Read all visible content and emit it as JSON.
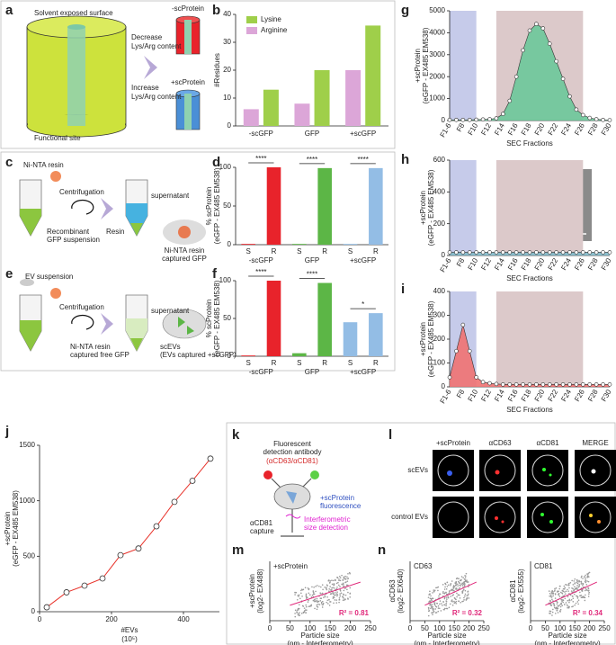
{
  "panel_labels": [
    "a",
    "b",
    "c",
    "d",
    "e",
    "f",
    "g",
    "h",
    "i",
    "j",
    "k",
    "l",
    "m",
    "n"
  ],
  "panel_a": {
    "surface": "Solvent exposed surface",
    "site": "Functional site",
    "decrease": [
      "Decrease",
      "Lys/Arg content"
    ],
    "increase": [
      "Increase",
      "Lys/Arg content"
    ],
    "minus": "-scProtein",
    "plus": "+scProtein"
  },
  "panel_c": {
    "resin": "Ni-NTA resin",
    "suspension": [
      "Recombinant",
      "GFP suspension"
    ],
    "spin": "Centrifugation",
    "supernatant": "supernatant",
    "pellet": "Resin",
    "captured": [
      "Ni-NTA resin",
      "captured GFP"
    ]
  },
  "panel_e": {
    "suspension": "EV suspension",
    "spin": "Centrifugation",
    "supernatant": "supernatant",
    "captured": [
      "Ni-NTA resin",
      "captured free GFP"
    ],
    "scevs": [
      "scEVs",
      "(EVs captured +scGFP)"
    ]
  },
  "panel_k": {
    "antibody": [
      "Fluorescent",
      "detection antibody",
      "(αCD63/αCD81)"
    ],
    "fluor": [
      "+scProtein",
      "fluorescence"
    ],
    "size": [
      "Interferometric",
      "size detection"
    ],
    "capture": [
      "αCD81",
      "capture"
    ]
  },
  "panel_l": {
    "columns": [
      "+scProtein",
      "αCD63",
      "αCD81",
      "MERGE"
    ],
    "rows": [
      "scEVs",
      "control EVs"
    ]
  },
  "chart_data": [
    {
      "type": "bar",
      "ylabel": [
        "#Residues"
      ],
      "categories": [
        "-scGFP",
        "GFP",
        "+scGFP"
      ],
      "series": [
        {
          "name": "Lysine",
          "color": "#9fcf4a",
          "values": [
            13,
            20,
            36
          ]
        },
        {
          "name": "Arginine",
          "color": "#dca6d8",
          "values": [
            6,
            8,
            20
          ]
        }
      ],
      "ylim": [
        0,
        40
      ],
      "yticks": [
        0,
        10,
        20,
        30,
        40
      ],
      "legend": "upper left"
    },
    {
      "type": "bar",
      "ylabel": [
        "% scProtein",
        "(eGFP - EX485 EM538)"
      ],
      "categories": [
        "S",
        "R",
        "S",
        "R",
        "S",
        "R"
      ],
      "groups": [
        "-scGFP",
        "GFP",
        "+scGFP"
      ],
      "values": [
        1,
        100,
        1,
        99,
        1,
        99
      ],
      "colors": [
        "#e8232b",
        "#e8232b",
        "#5cb646",
        "#5cb646",
        "#93bde5",
        "#93bde5"
      ],
      "ylim": [
        0,
        100
      ],
      "yticks": [
        0,
        50,
        100
      ],
      "annotations": [
        "****",
        "****",
        "****"
      ]
    },
    {
      "type": "bar",
      "ylabel": [
        "% scProtein",
        "(eGFP - EX485 EM538)"
      ],
      "categories": [
        "S",
        "R",
        "S",
        "R",
        "S",
        "R"
      ],
      "groups": [
        "-scGFP",
        "GFP",
        "+scGFP"
      ],
      "values": [
        1,
        100,
        4,
        97,
        45,
        57
      ],
      "colors": [
        "#e8232b",
        "#e8232b",
        "#5cb646",
        "#5cb646",
        "#93bde5",
        "#93bde5"
      ],
      "ylim": [
        0,
        100
      ],
      "yticks": [
        0,
        50,
        100
      ],
      "annotations": [
        "****",
        "****",
        "*"
      ]
    },
    {
      "type": "area",
      "ylabel": [
        "+scProtein",
        "(eGFP - EX485 EM538)"
      ],
      "xlabel": "SEC Fractions",
      "categories": [
        "F1-6",
        null,
        "F8",
        null,
        "F10",
        null,
        "F12",
        null,
        "F14",
        null,
        "F16",
        null,
        "F18",
        null,
        "F20",
        null,
        "F22",
        null,
        "F24",
        null,
        "F26",
        null,
        "F28",
        null,
        "F30"
      ],
      "values": [
        30,
        30,
        30,
        30,
        40,
        50,
        60,
        100,
        300,
        900,
        2000,
        3200,
        4100,
        4400,
        4200,
        3500,
        2700,
        1900,
        1100,
        500,
        250,
        120,
        60,
        30,
        20
      ],
      "color": "#6cc89a",
      "ylim": [
        0,
        5000
      ],
      "yticks": [
        0,
        1000,
        2000,
        3000,
        4000,
        5000
      ],
      "shaded": [
        {
          "from": 0,
          "to": 4,
          "color": "#c6cbea"
        },
        {
          "from": 7,
          "to": 20,
          "color": "#dcc9ca"
        }
      ]
    },
    {
      "type": "area",
      "ylabel": [
        "+scProtein",
        "(eGFP - EX485 EM538)"
      ],
      "xlabel": "SEC Fractions",
      "categories": [
        "F1-6",
        null,
        "F8",
        null,
        "F10",
        null,
        "F12",
        null,
        "F14",
        null,
        "F16",
        null,
        "F18",
        null,
        "F20",
        null,
        "F22",
        null,
        "F24",
        null,
        "F26",
        null,
        "F28",
        null,
        "F30"
      ],
      "values": [
        20,
        20,
        20,
        20,
        20,
        20,
        20,
        20,
        20,
        20,
        20,
        20,
        20,
        20,
        20,
        20,
        20,
        20,
        20,
        20,
        20,
        20,
        20,
        20,
        20
      ],
      "color": "#7fb8c8",
      "ylim": [
        0,
        600
      ],
      "yticks": [
        0,
        200,
        400,
        600
      ],
      "shaded": [
        {
          "from": 0,
          "to": 4,
          "color": "#c6cbea"
        },
        {
          "from": 7,
          "to": 20,
          "color": "#dcc9ca"
        }
      ]
    },
    {
      "type": "area",
      "ylabel": [
        "+scProtein",
        "(eGFP - EX485 EM538)"
      ],
      "xlabel": "SEC Fractions",
      "categories": [
        "F1-6",
        null,
        "F8",
        null,
        "F10",
        null,
        "F12",
        null,
        "F14",
        null,
        "F16",
        null,
        "F18",
        null,
        "F20",
        null,
        "F22",
        null,
        "F24",
        null,
        "F26",
        null,
        "F28",
        null,
        "F30"
      ],
      "values": [
        40,
        150,
        260,
        150,
        40,
        20,
        15,
        12,
        10,
        10,
        10,
        10,
        10,
        10,
        10,
        10,
        10,
        10,
        10,
        10,
        10,
        10,
        10,
        10,
        10
      ],
      "color": "#f07272",
      "ylim": [
        0,
        400
      ],
      "yticks": [
        0,
        100,
        200,
        300,
        400
      ],
      "shaded": [
        {
          "from": 0,
          "to": 4,
          "color": "#c6cbea"
        },
        {
          "from": 7,
          "to": 20,
          "color": "#dcc9ca"
        }
      ]
    },
    {
      "type": "line",
      "ylabel": [
        "+scProtein",
        "(eGFP - EX485 EM538)"
      ],
      "xlabel": [
        "#EVs",
        "(10⁵)"
      ],
      "x": [
        20,
        75,
        125,
        175,
        225,
        275,
        325,
        375,
        425,
        475
      ],
      "values": [
        40,
        175,
        235,
        300,
        510,
        570,
        770,
        990,
        1180,
        1380
      ],
      "color": "#e8332b",
      "xlim": [
        0,
        500
      ],
      "xticks": [
        0,
        200,
        400
      ],
      "ylim": [
        0,
        1500
      ],
      "yticks": [
        0,
        500,
        1000,
        1500
      ]
    },
    {
      "type": "scatter",
      "title": "+scProtein",
      "ylabel": [
        "+scProtein",
        "(log2- EX488)"
      ],
      "xlabel": [
        "Particle size",
        "(nm - Interferometry)"
      ],
      "annotation": "R² = 0.81",
      "xlim": [
        0,
        250
      ],
      "xticks": [
        0,
        50,
        100,
        150,
        200,
        250
      ]
    },
    {
      "type": "scatter",
      "title": "CD63",
      "ylabel": [
        "αCD63",
        "(log2- EX640)"
      ],
      "xlabel": [
        "Particle size",
        "(nm - Interferometry)"
      ],
      "annotation": "R² = 0.32",
      "xlim": [
        0,
        250
      ],
      "xticks": [
        0,
        50,
        100,
        150,
        200,
        250
      ]
    },
    {
      "type": "scatter",
      "title": "CD81",
      "ylabel": [
        "αCD81",
        "(log2- EX555)"
      ],
      "xlabel": [
        "Particle size",
        "(nm - Interferometry)"
      ],
      "annotation": "R² = 0.34",
      "xlim": [
        0,
        250
      ],
      "xticks": [
        0,
        50,
        100,
        150,
        200,
        250
      ]
    }
  ]
}
